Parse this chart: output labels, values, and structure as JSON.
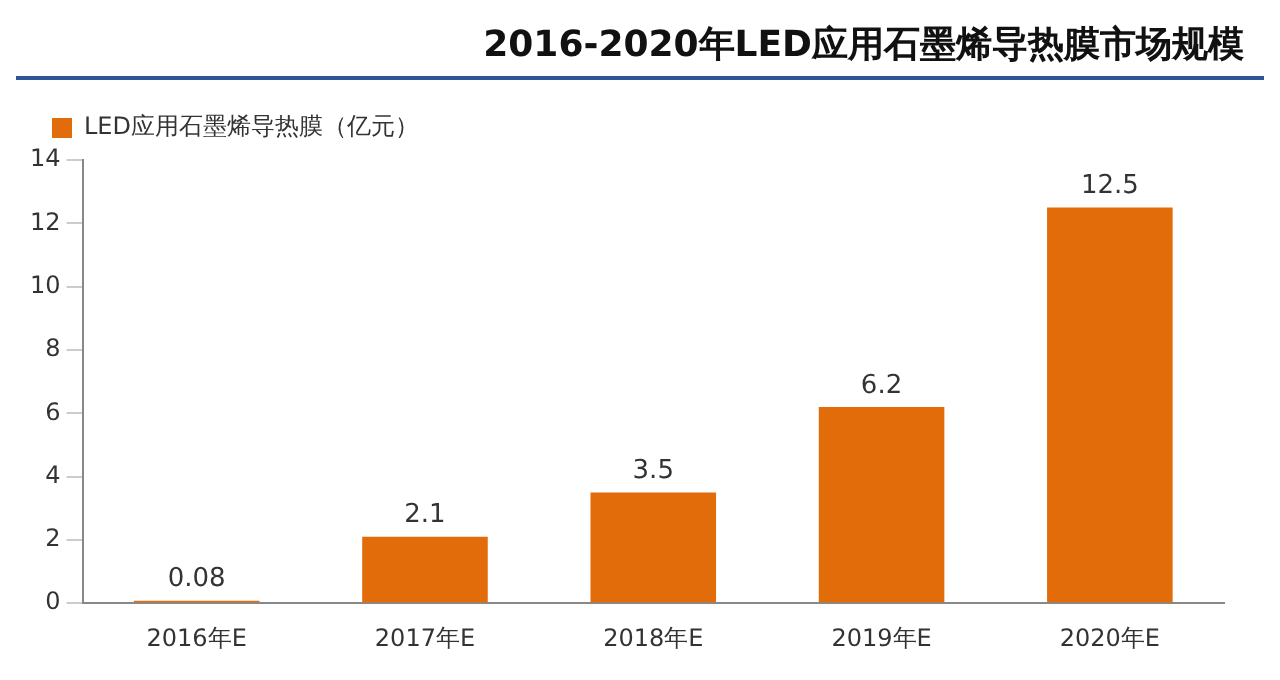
{
  "chart_data": {
    "type": "bar",
    "title": "2016-2020年LED应用石墨烯导热膜市场规模",
    "categories": [
      "2016年E",
      "2017年E",
      "2018年E",
      "2019年E",
      "2020年E"
    ],
    "series": [
      {
        "name": "LED应用石墨烯导热膜（亿元）",
        "color": "#e36c0a",
        "values": [
          0.08,
          2.1,
          3.5,
          6.2,
          12.5
        ]
      }
    ],
    "ylim": [
      0,
      14
    ],
    "yticks": [
      0,
      2,
      4,
      6,
      8,
      10,
      12,
      14
    ],
    "grid": false,
    "legend": "top left",
    "data_labels": true
  }
}
